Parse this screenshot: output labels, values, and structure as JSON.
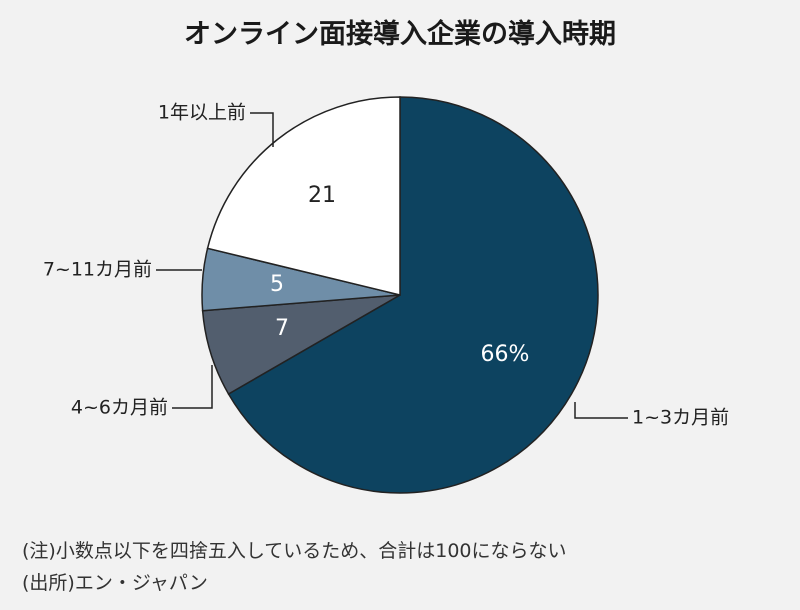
{
  "chart_data": {
    "type": "pie",
    "title": "オンライン面接導入企業の導入時期",
    "slices": [
      {
        "label": "1~3カ月前",
        "value": 66,
        "display": "66%",
        "color": "#0d4360",
        "text_color": "#ffffff"
      },
      {
        "label": "4~6カ月前",
        "value": 7,
        "display": "7",
        "color": "#525e6e",
        "text_color": "#ffffff"
      },
      {
        "label": "7~11カ月前",
        "value": 5,
        "display": "5",
        "color": "#6f8ea8",
        "text_color": "#ffffff"
      },
      {
        "label": "1年以上前",
        "value": 21,
        "display": "21",
        "color": "#ffffff",
        "text_color": "#222222"
      }
    ],
    "start": "12 o'clock",
    "direction": "clockwise"
  },
  "notes": {
    "note": "(注)小数点以下を四捨五入しているため、合計は100にならない",
    "source": "(出所)エン・ジャパン"
  },
  "colors": {
    "background": "#f2f2f2",
    "outline": "#222222"
  }
}
